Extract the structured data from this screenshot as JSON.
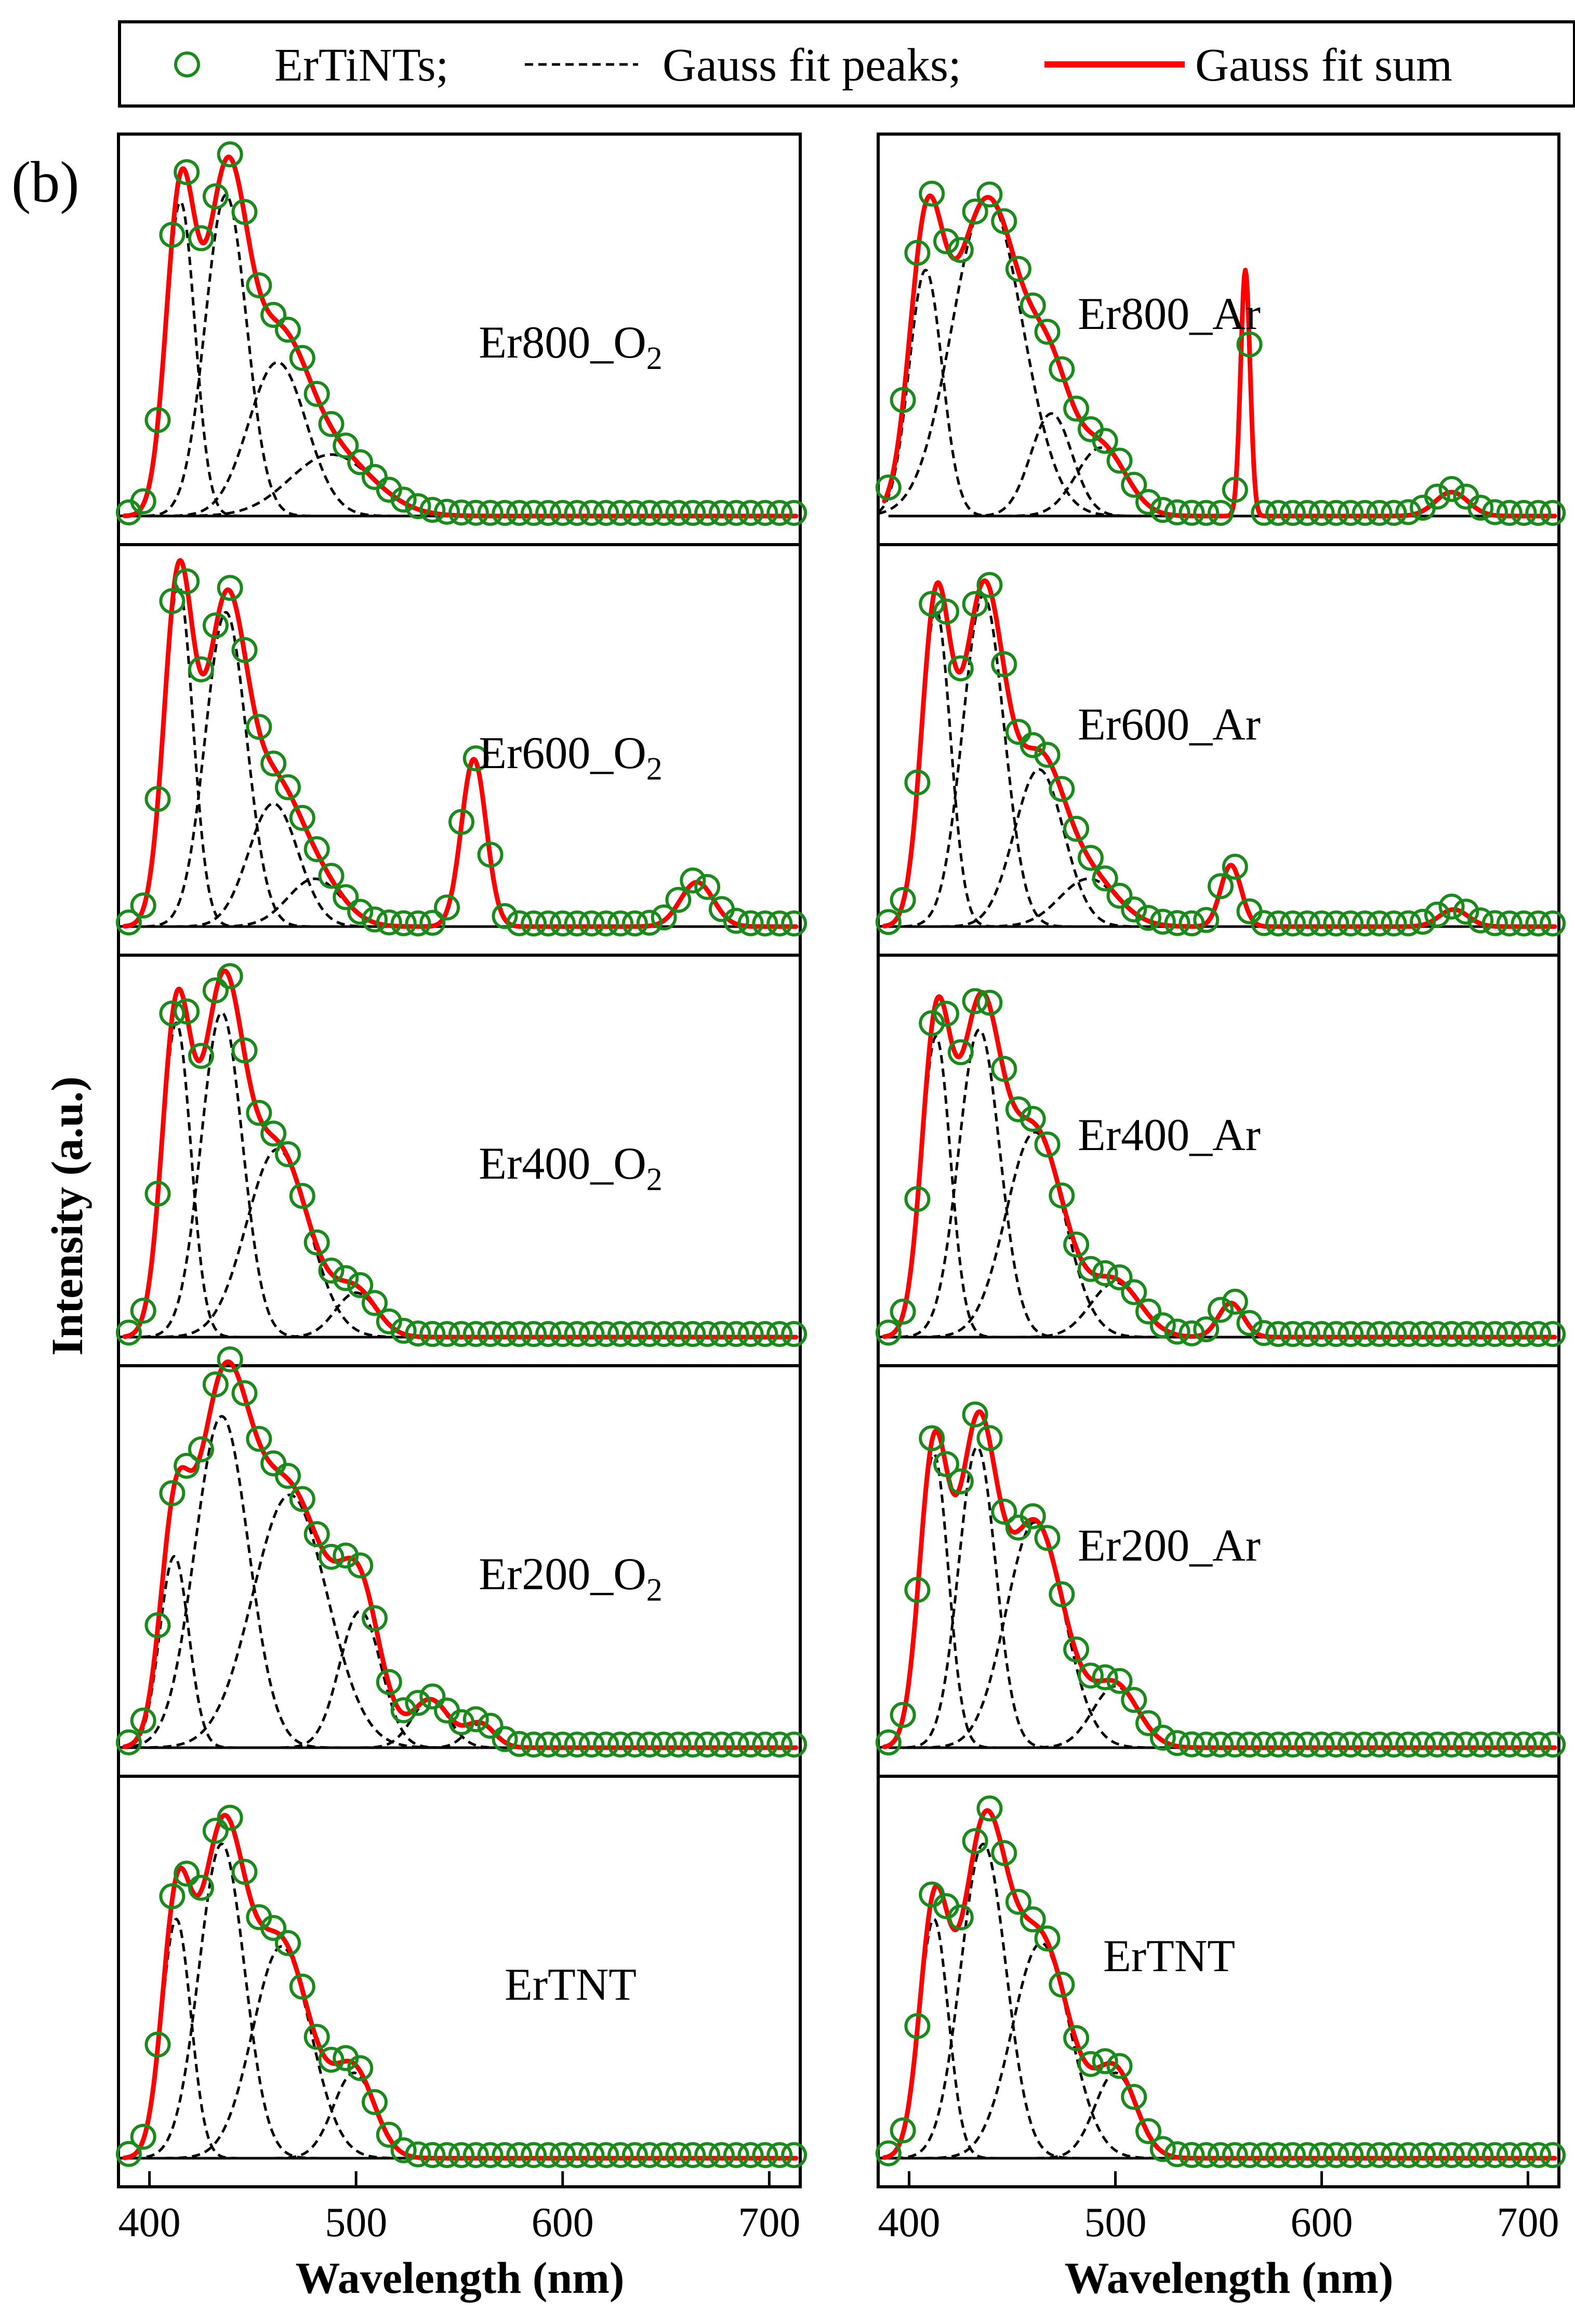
{
  "colors": {
    "data": "#1a8a1a",
    "fit_sum": "#ff0000",
    "fit_peaks": "#000000",
    "frame": "#000000"
  },
  "figure_label": "(b)",
  "legend": {
    "items": [
      {
        "label": "ErTiNTs;",
        "symbol": "open-circle-icon"
      },
      {
        "label": "Gauss fit peaks;",
        "symbol": "dashed-line-icon"
      },
      {
        "label": "Gauss fit sum",
        "symbol": "solid-red-line-icon"
      }
    ]
  },
  "axes": {
    "xlabel": "Wavelength (nm)",
    "ylabel": "Intensity (a.u.)",
    "xlim": [
      385,
      715
    ],
    "xticks": [
      400,
      500,
      600,
      700
    ],
    "xtick_labels": [
      "400",
      "500",
      "600",
      "700"
    ]
  },
  "chart_data": {
    "type": "line",
    "title": "",
    "xlabel": "Wavelength (nm)",
    "ylabel": "Intensity (a.u.)",
    "xlim": [
      385,
      715
    ],
    "ylim": [
      0,
      1.08
    ],
    "panels": [
      {
        "label": "Er800_O2",
        "label_main": "Er800_O",
        "label_sub": "2",
        "column": "left",
        "row": 0,
        "peaks": [
          [
            415,
            7,
            0.92
          ],
          [
            437,
            10,
            0.94
          ],
          [
            462,
            14,
            0.45
          ],
          [
            488,
            20,
            0.18
          ]
        ]
      },
      {
        "label": "Er800_Ar",
        "label_main": "Er800_Ar",
        "label_sub": "",
        "column": "right",
        "row": 0,
        "peaks": [
          [
            408,
            8,
            0.72
          ],
          [
            438,
            17,
            0.93
          ],
          [
            469,
            10,
            0.3
          ],
          [
            493,
            12,
            0.2
          ],
          [
            563,
            2.3,
            0.72
          ],
          [
            663,
            8,
            0.07
          ]
        ]
      },
      {
        "label": "Er600_O2",
        "label_main": "Er600_O",
        "label_sub": "2",
        "column": "left",
        "row": 1,
        "peaks": [
          [
            414,
            7,
            1.0
          ],
          [
            437,
            10,
            0.92
          ],
          [
            460,
            12,
            0.36
          ],
          [
            480,
            13,
            0.14
          ],
          [
            557,
            6,
            0.49
          ],
          [
            665,
            8,
            0.13
          ]
        ]
      },
      {
        "label": "Er600_Ar",
        "label_main": "Er600_Ar",
        "label_sub": "",
        "column": "right",
        "row": 1,
        "peaks": [
          [
            413,
            7,
            0.93
          ],
          [
            436,
            10,
            0.97
          ],
          [
            463,
            12,
            0.46
          ],
          [
            487,
            14,
            0.14
          ],
          [
            556,
            5,
            0.18
          ],
          [
            664,
            7,
            0.05
          ]
        ]
      },
      {
        "label": "Er400_O2",
        "label_main": "Er400_O",
        "label_sub": "2",
        "column": "left",
        "row": 2,
        "peaks": [
          [
            413,
            7,
            0.92
          ],
          [
            435,
            10,
            0.95
          ],
          [
            462,
            15,
            0.55
          ],
          [
            500,
            10,
            0.13
          ]
        ]
      },
      {
        "label": "Er400_Ar",
        "label_main": "Er400_Ar",
        "label_sub": "",
        "column": "right",
        "row": 2,
        "peaks": [
          [
            413,
            7,
            0.88
          ],
          [
            434,
            10,
            0.9
          ],
          [
            461,
            14,
            0.6
          ],
          [
            500,
            12,
            0.16
          ],
          [
            556,
            6,
            0.1
          ]
        ]
      },
      {
        "label": "Er200_O2",
        "label_main": "Er200_O",
        "label_sub": "2",
        "column": "left",
        "row": 3,
        "peaks": [
          [
            412,
            7,
            0.56
          ],
          [
            435,
            13,
            0.97
          ],
          [
            468,
            18,
            0.74
          ],
          [
            502,
            10,
            0.4
          ],
          [
            536,
            9,
            0.14
          ],
          [
            560,
            7,
            0.07
          ]
        ]
      },
      {
        "label": "Er200_Ar",
        "label_main": "Er200_Ar",
        "label_sub": "",
        "column": "right",
        "row": 3,
        "peaks": [
          [
            412,
            7,
            0.86
          ],
          [
            433,
            9,
            0.88
          ],
          [
            461,
            14,
            0.66
          ],
          [
            500,
            11,
            0.18
          ]
        ]
      },
      {
        "label": "ErTNT",
        "label_main": "ErTNT",
        "label_sub": "",
        "column": "left",
        "row": 4,
        "peaks": [
          [
            413,
            7,
            0.7
          ],
          [
            435,
            11,
            0.92
          ],
          [
            464,
            14,
            0.62
          ],
          [
            499,
            10,
            0.25
          ]
        ]
      },
      {
        "label": "ErTNT",
        "label_main": "ErTNT",
        "label_sub": "",
        "column": "right",
        "row": 4,
        "peaks": [
          [
            412,
            7,
            0.7
          ],
          [
            436,
            11,
            0.92
          ],
          [
            464,
            14,
            0.63
          ],
          [
            500,
            10,
            0.25
          ]
        ]
      }
    ]
  }
}
